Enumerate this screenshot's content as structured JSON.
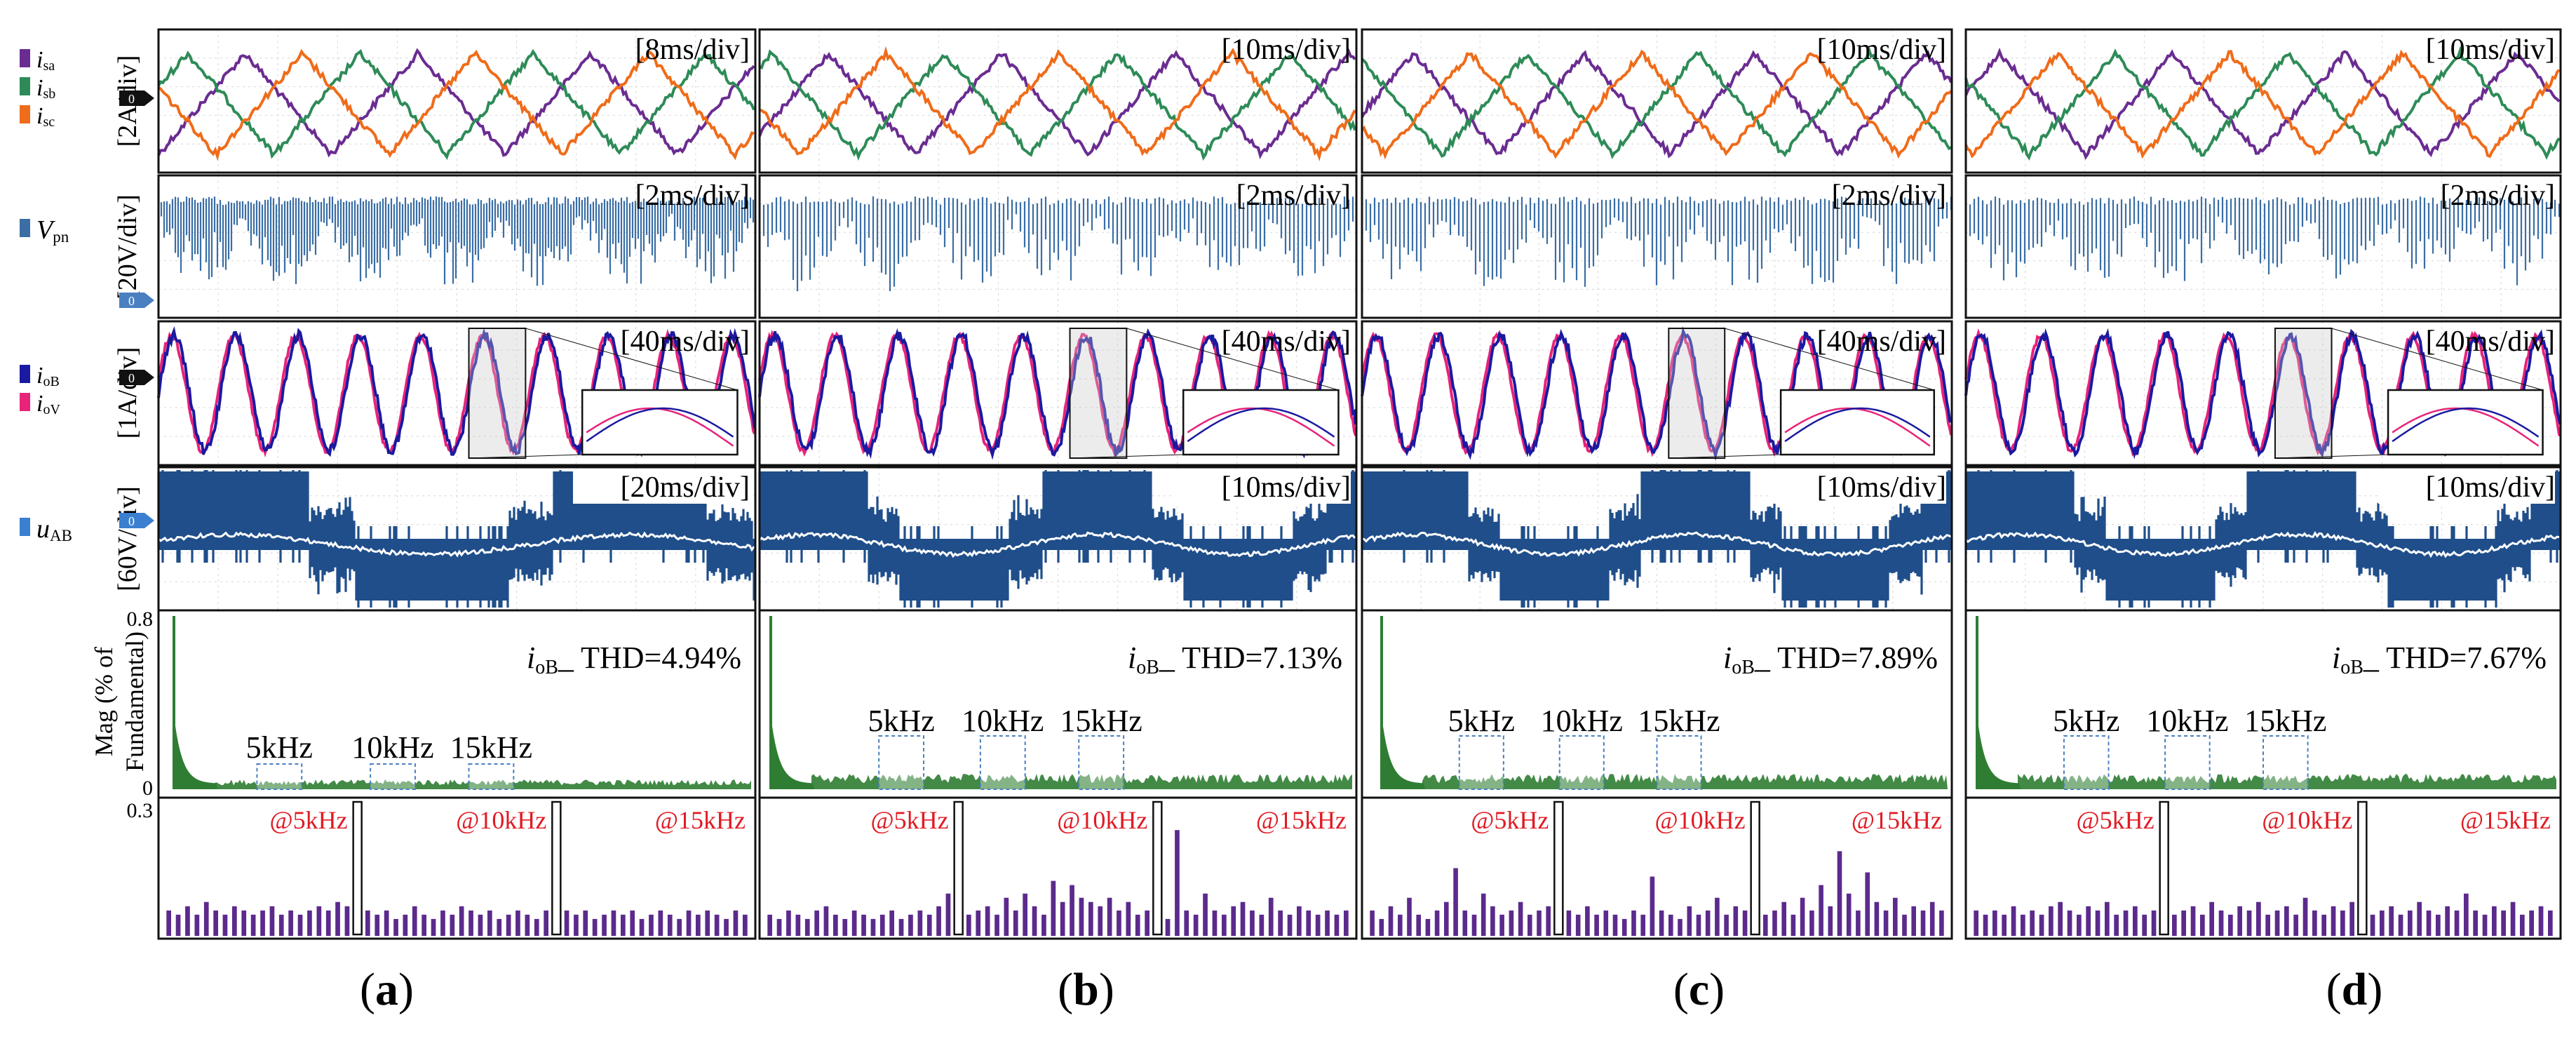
{
  "figure": {
    "panel_labels": [
      "(a)",
      "(b)",
      "(c)",
      "(d)"
    ],
    "legends": {
      "isa": "isa",
      "isb": "isb",
      "isc": "isc",
      "vpn": "Vpn",
      "iob": "ioB",
      "iov": "ioV",
      "uab": "uAB"
    },
    "row_units": [
      "[2A/div]",
      "[20V/div]",
      "[1A/div]",
      "[60V/div]"
    ],
    "zero_marker": "0",
    "colors": {
      "isa": "#6a2c91",
      "isb": "#2e8b57",
      "isc": "#ef6c1a",
      "vpn": "#3a6ea5",
      "iob": "#1a1aa0",
      "iov": "#e8237a",
      "uab": "#1f4e8a",
      "fft": "#2e7d32",
      "bars": "#5b2a8c",
      "ann": "#e01b24"
    }
  },
  "chart_data": [
    {
      "type": "line",
      "panel": "(a)",
      "rows": {
        "phase_currents": {
          "series": [
            "isa",
            "isb",
            "isc"
          ],
          "timebase": "[8ms/div]",
          "unit": "[2A/div]"
        },
        "dc_voltage": {
          "series": [
            "Vpn"
          ],
          "timebase": "[2ms/div]",
          "unit": "[20V/div]"
        },
        "output_currents": {
          "series": [
            "ioB",
            "ioV"
          ],
          "timebase": "[40ms/div]",
          "unit": "[1A/div]"
        },
        "line_voltage": {
          "series": [
            "uAB"
          ],
          "timebase": "[20ms/div]",
          "unit": "[60V/div]"
        }
      },
      "fft": {
        "ylabel": "Mag (% of Fundamental)",
        "ylim": [
          0,
          0.8
        ],
        "y_ticks": [
          "0.8",
          "0"
        ],
        "thd_label": "ioB_ THD=4.94%",
        "thd": 4.94,
        "harmonic_labels": [
          "5kHz",
          "10kHz",
          "15kHz"
        ]
      },
      "zoom": {
        "ylim": [
          0,
          0.3
        ],
        "y_tick": "0.3",
        "labels": [
          "@5kHz",
          "@10kHz",
          "@15kHz"
        ],
        "groups": [
          [
            0.06,
            0.05,
            0.07,
            0.05,
            0.08,
            0.06,
            0.05,
            0.07,
            0.06,
            0.05,
            0.06,
            0.07,
            0.05,
            0.06,
            0.05,
            0.06,
            0.07,
            0.06,
            0.08,
            0.07
          ],
          [
            0.06,
            0.05,
            0.06,
            0.04,
            0.05,
            0.07,
            0.05,
            0.04,
            0.06,
            0.05,
            0.07,
            0.06,
            0.05,
            0.06,
            0.04,
            0.05,
            0.06,
            0.05,
            0.04,
            0.06
          ],
          [
            0.06,
            0.05,
            0.06,
            0.04,
            0.05,
            0.06,
            0.05,
            0.06,
            0.04,
            0.05,
            0.06,
            0.05,
            0.04,
            0.06,
            0.05,
            0.06,
            0.05,
            0.04,
            0.06,
            0.05
          ]
        ]
      }
    },
    {
      "type": "line",
      "panel": "(b)",
      "rows": {
        "phase_currents": {
          "series": [
            "isa",
            "isb",
            "isc"
          ],
          "timebase": "[10ms/div]",
          "unit": "[2A/div]"
        },
        "dc_voltage": {
          "series": [
            "Vpn"
          ],
          "timebase": "[2ms/div]",
          "unit": "[20V/div]"
        },
        "output_currents": {
          "series": [
            "ioB",
            "ioV"
          ],
          "timebase": "[40ms/div]",
          "unit": "[1A/div]"
        },
        "line_voltage": {
          "series": [
            "uAB"
          ],
          "timebase": "[10ms/div]",
          "unit": "[60V/div]"
        }
      },
      "fft": {
        "ylabel": "Mag (% of Fundamental)",
        "ylim": [
          0,
          0.8
        ],
        "y_ticks": [
          "0.8",
          "0"
        ],
        "thd_label": "ioB_ THD=7.13%",
        "thd": 7.13,
        "harmonic_labels": [
          "5kHz",
          "10kHz",
          "15kHz"
        ]
      },
      "zoom": {
        "ylim": [
          0,
          0.3
        ],
        "y_tick": "0.3",
        "labels": [
          "@5kHz",
          "@10kHz",
          "@15kHz"
        ],
        "groups": [
          [
            0.05,
            0.04,
            0.06,
            0.05,
            0.04,
            0.06,
            0.07,
            0.05,
            0.04,
            0.06,
            0.05,
            0.04,
            0.05,
            0.06,
            0.04,
            0.05,
            0.06,
            0.05,
            0.07,
            0.1
          ],
          [
            0.05,
            0.06,
            0.07,
            0.05,
            0.09,
            0.06,
            0.1,
            0.07,
            0.05,
            0.13,
            0.08,
            0.12,
            0.09,
            0.08,
            0.07,
            0.09,
            0.06,
            0.08,
            0.05,
            0.06
          ],
          [
            0.04,
            0.25,
            0.06,
            0.05,
            0.1,
            0.06,
            0.05,
            0.07,
            0.08,
            0.06,
            0.05,
            0.09,
            0.06,
            0.05,
            0.07,
            0.06,
            0.05,
            0.06,
            0.05,
            0.06
          ]
        ]
      }
    },
    {
      "type": "line",
      "panel": "(c)",
      "rows": {
        "phase_currents": {
          "series": [
            "isa",
            "isb",
            "isc"
          ],
          "timebase": "[10ms/div]",
          "unit": "[2A/div]"
        },
        "dc_voltage": {
          "series": [
            "Vpn"
          ],
          "timebase": "[2ms/div]",
          "unit": "[20V/div]"
        },
        "output_currents": {
          "series": [
            "ioB",
            "ioV"
          ],
          "timebase": "[40ms/div]",
          "unit": "[1A/div]"
        },
        "line_voltage": {
          "series": [
            "uAB"
          ],
          "timebase": "[10ms/div]",
          "unit": "[60V/div]"
        }
      },
      "fft": {
        "ylabel": "Mag (% of Fundamental)",
        "ylim": [
          0,
          0.8
        ],
        "y_ticks": [
          "0.8",
          "0"
        ],
        "thd_label": "ioB_ THD=7.89%",
        "thd": 7.89,
        "harmonic_labels": [
          "5kHz",
          "10kHz",
          "15kHz"
        ]
      },
      "zoom": {
        "ylim": [
          0,
          0.3
        ],
        "y_tick": "0.3",
        "labels": [
          "@5kHz",
          "@10kHz",
          "@15kHz"
        ],
        "groups": [
          [
            0.06,
            0.04,
            0.07,
            0.05,
            0.09,
            0.05,
            0.04,
            0.06,
            0.08,
            0.16,
            0.06,
            0.05,
            0.1,
            0.07,
            0.05,
            0.06,
            0.08,
            0.05,
            0.06,
            0.07
          ],
          [
            0.06,
            0.05,
            0.07,
            0.05,
            0.06,
            0.05,
            0.04,
            0.06,
            0.05,
            0.14,
            0.06,
            0.05,
            0.04,
            0.07,
            0.05,
            0.06,
            0.09,
            0.05,
            0.07,
            0.06
          ],
          [
            0.05,
            0.06,
            0.08,
            0.05,
            0.09,
            0.06,
            0.12,
            0.07,
            0.2,
            0.1,
            0.06,
            0.15,
            0.08,
            0.06,
            0.09,
            0.05,
            0.07,
            0.06,
            0.08,
            0.06
          ]
        ]
      }
    },
    {
      "type": "line",
      "panel": "(d)",
      "rows": {
        "phase_currents": {
          "series": [
            "isa",
            "isb",
            "isc"
          ],
          "timebase": "[10ms/div]",
          "unit": "[2A/div]"
        },
        "dc_voltage": {
          "series": [
            "Vpn"
          ],
          "timebase": "[2ms/div]",
          "unit": "[20V/div]"
        },
        "output_currents": {
          "series": [
            "ioB",
            "ioV"
          ],
          "timebase": "[40ms/div]",
          "unit": "[1A/div]"
        },
        "line_voltage": {
          "series": [
            "uAB"
          ],
          "timebase": "[10ms/div]",
          "unit": "[60V/div]"
        }
      },
      "fft": {
        "ylabel": "Mag (% of Fundamental)",
        "ylim": [
          0,
          0.8
        ],
        "y_ticks": [
          "0.8",
          "0"
        ],
        "thd_label": "ioB_ THD=7.67%",
        "thd": 7.67,
        "harmonic_labels": [
          "5kHz",
          "10kHz",
          "15kHz"
        ]
      },
      "zoom": {
        "ylim": [
          0,
          0.3
        ],
        "y_tick": "0.3",
        "labels": [
          "@5kHz",
          "@10kHz",
          "@15kHz"
        ],
        "groups": [
          [
            0.06,
            0.05,
            0.06,
            0.05,
            0.07,
            0.05,
            0.06,
            0.05,
            0.07,
            0.08,
            0.06,
            0.05,
            0.07,
            0.06,
            0.08,
            0.05,
            0.06,
            0.07,
            0.05,
            0.06
          ],
          [
            0.05,
            0.06,
            0.07,
            0.05,
            0.08,
            0.06,
            0.05,
            0.07,
            0.06,
            0.08,
            0.05,
            0.06,
            0.07,
            0.05,
            0.09,
            0.06,
            0.05,
            0.07,
            0.06,
            0.08
          ],
          [
            0.05,
            0.06,
            0.07,
            0.05,
            0.06,
            0.08,
            0.06,
            0.05,
            0.07,
            0.06,
            0.1,
            0.06,
            0.05,
            0.07,
            0.06,
            0.08,
            0.05,
            0.06,
            0.07,
            0.06
          ]
        ]
      }
    }
  ]
}
